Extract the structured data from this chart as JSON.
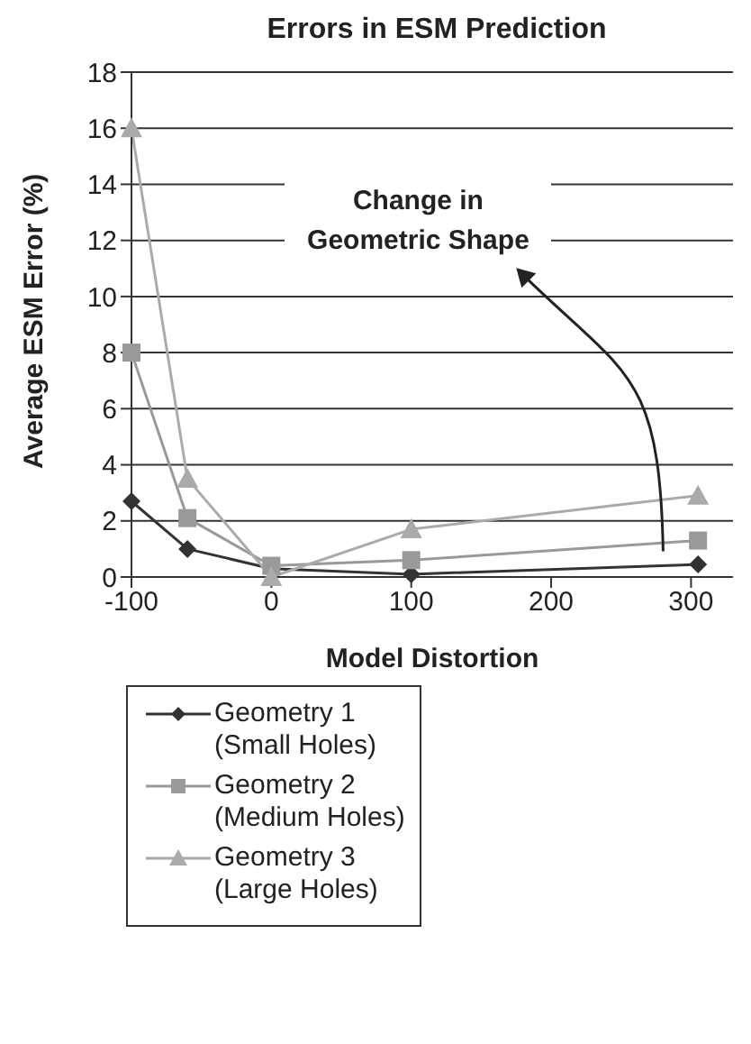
{
  "chart_data": {
    "type": "line",
    "title": "Errors in ESM Prediction",
    "xlabel": "Model Distortion",
    "ylabel": "Average ESM Error (%)",
    "x": [
      -100,
      -60,
      0,
      100,
      305
    ],
    "series": [
      {
        "name": "Geometry 1\n(Small Holes)",
        "color": "#333333",
        "marker": "diamond",
        "values": [
          2.7,
          1.0,
          0.3,
          0.1,
          0.45
        ]
      },
      {
        "name": "Geometry 2\n(Medium Holes)",
        "color": "#999999",
        "marker": "square",
        "values": [
          8.0,
          2.1,
          0.4,
          0.6,
          1.3
        ]
      },
      {
        "name": "Geometry 3\n(Large Holes)",
        "color": "#aaaaaa",
        "marker": "triangle",
        "values": [
          16.0,
          3.5,
          0.0,
          1.7,
          2.9
        ]
      }
    ],
    "xlim": [
      -100,
      330
    ],
    "xticks": [
      -100,
      0,
      100,
      200,
      300
    ],
    "ylim": [
      0,
      18
    ],
    "yticks": [
      0,
      2,
      4,
      6,
      8,
      10,
      12,
      14,
      16,
      18
    ],
    "grid": "y",
    "legend": "bottom",
    "line_style": "solid",
    "annotations": [
      "Change in Geometric Shape"
    ]
  }
}
